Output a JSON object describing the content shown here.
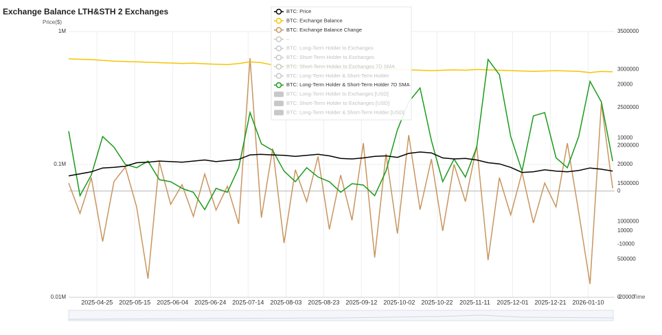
{
  "chart_data": {
    "type": "line",
    "title": "Exchange Balance LTH&STH 2 Exchanges",
    "y_label": "Price($)",
    "x_label": "Time",
    "xlim": [
      "2025-04-10",
      "2026-01-24"
    ],
    "xticks": [
      "2025-04-25",
      "2025-05-15",
      "2025-06-04",
      "2025-06-24",
      "2025-07-14",
      "2025-08-03",
      "2025-08-23",
      "2025-09-12",
      "2025-10-02",
      "2025-10-22",
      "2025-11-11",
      "2025-12-01",
      "2025-12-21",
      "2026-01-10"
    ],
    "log_y": true,
    "ylim": [
      10000,
      1000000
    ],
    "yticks": [
      {
        "value": 10000,
        "label": "0.01M"
      },
      {
        "value": 100000,
        "label": "0.1M"
      },
      {
        "value": 1000000,
        "label": "1M"
      }
    ],
    "y2lim": [
      0,
      3500000
    ],
    "y2ticks": [
      0,
      500000,
      1000000,
      1500000,
      2000000,
      2500000,
      3000000,
      3500000
    ],
    "y3lim": [
      -20000,
      30000
    ],
    "y3ticks": [
      -20000,
      -10000,
      0,
      10000,
      20000
    ],
    "y4lim": [
      0,
      40000
    ],
    "y4ticks": [
      10000,
      20000
    ],
    "grid": true,
    "x": [
      "2025-04-10",
      "2025-04-16",
      "2025-04-22",
      "2025-04-28",
      "2025-05-04",
      "2025-05-10",
      "2025-05-16",
      "2025-05-22",
      "2025-05-28",
      "2025-06-03",
      "2025-06-09",
      "2025-06-15",
      "2025-06-21",
      "2025-06-27",
      "2025-07-03",
      "2025-07-09",
      "2025-07-15",
      "2025-07-21",
      "2025-07-27",
      "2025-08-02",
      "2025-08-08",
      "2025-08-14",
      "2025-08-20",
      "2025-08-26",
      "2025-09-01",
      "2025-09-07",
      "2025-09-13",
      "2025-09-19",
      "2025-09-25",
      "2025-10-01",
      "2025-10-07",
      "2025-10-13",
      "2025-10-19",
      "2025-10-25",
      "2025-10-31",
      "2025-11-06",
      "2025-11-12",
      "2025-11-18",
      "2025-11-24",
      "2025-11-30",
      "2025-12-06",
      "2025-12-12",
      "2025-12-18",
      "2025-12-24",
      "2025-12-30",
      "2026-01-05",
      "2026-01-11",
      "2026-01-17",
      "2026-01-23"
    ],
    "series": [
      {
        "name": "BTC: Price",
        "color": "#000000",
        "axis": "y",
        "values": [
          82000,
          85000,
          88000,
          94000,
          95000,
          97000,
          103000,
          104000,
          106000,
          105000,
          104000,
          106000,
          108000,
          105000,
          107000,
          109000,
          118000,
          119000,
          118000,
          117000,
          115000,
          117000,
          119000,
          116000,
          111000,
          110000,
          112000,
          115000,
          116000,
          113000,
          121000,
          124000,
          122000,
          112000,
          110000,
          111000,
          108000,
          103000,
          101000,
          95000,
          87000,
          88000,
          91000,
          89000,
          88000,
          90000,
          94000,
          92000,
          89000
        ]
      },
      {
        "name": "BTC: Exchange Balance",
        "color": "#f5c400",
        "axis": "y2",
        "values": [
          3140000,
          3135000,
          3130000,
          3120000,
          3110000,
          3105000,
          3100000,
          3095000,
          3090000,
          3085000,
          3080000,
          3082000,
          3075000,
          3070000,
          3065000,
          3078000,
          3100000,
          3090000,
          3060000,
          3050000,
          3045000,
          3040000,
          3035000,
          3030000,
          3020000,
          3015000,
          3010000,
          3012000,
          3005000,
          3000000,
          2995000,
          2990000,
          2985000,
          2990000,
          2995000,
          2990000,
          3000000,
          2995000,
          2990000,
          2985000,
          2980000,
          2975000,
          2980000,
          2985000,
          2980000,
          2975000,
          2960000,
          2975000,
          2970000
        ]
      },
      {
        "name": "BTC: Exchange Balance Change",
        "color": "#c8955e",
        "axis": "y3",
        "values": [
          1500,
          -4200,
          2500,
          -9500,
          1800,
          4500,
          -3000,
          -16500,
          5500,
          -2500,
          1200,
          -4800,
          3200,
          -3600,
          900,
          -6200,
          25000,
          -5000,
          8000,
          -9800,
          4000,
          -2000,
          6500,
          -7200,
          3000,
          -5500,
          9000,
          -12500,
          7000,
          -8000,
          10500,
          -3500,
          6000,
          -7500,
          5000,
          -2000,
          8500,
          -13000,
          2500,
          -4500,
          3500,
          -6000,
          1500,
          -3000,
          9000,
          -4000,
          -17500,
          16500,
          500
        ]
      },
      {
        "name": "–",
        "color": "#c8c8c8",
        "visible": false
      },
      {
        "name": "BTC: Long-Term Holder to Exchanges",
        "color": "#c8c8c8",
        "visible": false
      },
      {
        "name": "BTC: Short-Term Holder to Exchanges",
        "color": "#c8c8c8",
        "visible": false
      },
      {
        "name": "BTC: Short-Term Holder to Exchanges 7D SMA",
        "color": "#c8c8c8",
        "visible": false
      },
      {
        "name": "BTC: Long-Term Holder & Short-Term Holder",
        "color": "#c8c8c8",
        "visible": false
      },
      {
        "name": "BTC: Long-Term Holder & Short-Term Holder 7D SMA",
        "color": "#1a9a1a",
        "axis": "y4",
        "values": [
          25000,
          15300,
          18400,
          24200,
          22600,
          20000,
          19500,
          20500,
          17700,
          17400,
          16400,
          15800,
          13200,
          16400,
          15800,
          19500,
          27800,
          23100,
          22100,
          19000,
          17400,
          19500,
          18100,
          17400,
          15800,
          17100,
          16900,
          15300,
          19000,
          25200,
          29400,
          31500,
          23600,
          17400,
          20800,
          18100,
          22600,
          35800,
          33500,
          24200,
          19000,
          27300,
          27800,
          21000,
          19500,
          24200,
          32500,
          29400,
          20500
        ]
      },
      {
        "name": "BTC: Long-Term Holder to Exchanges [USD]",
        "color": "#c8c8c8",
        "visible": false,
        "marker": "bar"
      },
      {
        "name": "BTC: Short-Term Holder to Exchanges [USD]",
        "color": "#c8c8c8",
        "visible": false,
        "marker": "bar"
      },
      {
        "name": "BTC: Long-Term Holder & Short-Term Holder [USD]",
        "color": "#c8c8c8",
        "visible": false,
        "marker": "bar"
      }
    ]
  }
}
